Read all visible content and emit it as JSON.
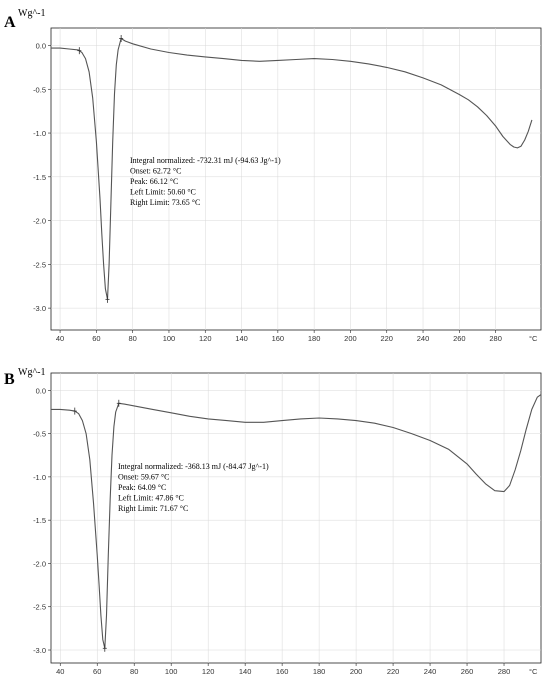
{
  "chart_data": [
    {
      "type": "line",
      "panel_label": "A",
      "ylabel": "Wg^-1",
      "xlabel": "°C",
      "xlim": [
        35,
        305
      ],
      "ylim": [
        -3.25,
        0.2
      ],
      "x_ticks": [
        40,
        60,
        80,
        100,
        120,
        140,
        160,
        180,
        200,
        220,
        240,
        260,
        280
      ],
      "y_ticks": [
        0.0,
        -0.5,
        -1.0,
        -1.5,
        -2.0,
        -2.5,
        -3.0
      ],
      "x_tick_labels": [
        "40",
        "60",
        "80",
        "100",
        "120",
        "140",
        "160",
        "180",
        "200",
        "220",
        "240",
        "260",
        "280"
      ],
      "y_tick_labels": [
        "0.0",
        "-0.5",
        "-1.0",
        "-1.5",
        "-2.0",
        "-2.5",
        "-3.0"
      ],
      "series": [
        {
          "x": [
            35,
            40,
            45,
            50,
            52,
            54,
            56,
            58,
            60,
            62,
            63,
            64,
            65,
            66.12,
            67,
            68,
            69,
            70,
            71,
            72,
            73.65,
            76,
            80,
            90,
            100,
            110,
            120,
            130,
            140,
            150,
            160,
            170,
            180,
            190,
            200,
            210,
            220,
            230,
            240,
            250,
            260,
            265,
            270,
            275,
            280,
            284,
            288,
            290,
            292,
            294,
            296,
            298,
            300
          ],
          "y": [
            -0.03,
            -0.03,
            -0.04,
            -0.05,
            -0.08,
            -0.15,
            -0.3,
            -0.6,
            -1.1,
            -1.75,
            -2.15,
            -2.5,
            -2.78,
            -2.9,
            -2.5,
            -1.8,
            -1.1,
            -0.55,
            -0.22,
            -0.05,
            0.08,
            0.05,
            0.02,
            -0.04,
            -0.08,
            -0.11,
            -0.13,
            -0.15,
            -0.17,
            -0.18,
            -0.17,
            -0.16,
            -0.15,
            -0.16,
            -0.18,
            -0.21,
            -0.25,
            -0.3,
            -0.37,
            -0.45,
            -0.56,
            -0.62,
            -0.7,
            -0.8,
            -0.92,
            -1.04,
            -1.13,
            -1.16,
            -1.17,
            -1.15,
            -1.08,
            -0.98,
            -0.85
          ]
        }
      ],
      "markers_x": [
        50.6,
        66.12,
        73.65
      ],
      "annotation": [
        "Integral normalized: -732.31 mJ (-94.63 Jg^-1)",
        "Onset: 62.72 °C",
        "Peak: 66.12 °C",
        "Left Limit: 50.60 °C",
        "Right Limit: 73.65 °C"
      ]
    },
    {
      "type": "line",
      "panel_label": "B",
      "ylabel": "Wg^-1",
      "xlabel": "°C",
      "xlim": [
        35,
        300
      ],
      "ylim": [
        -3.15,
        0.2
      ],
      "x_ticks": [
        40,
        60,
        80,
        100,
        120,
        140,
        160,
        180,
        200,
        220,
        240,
        260,
        280
      ],
      "y_ticks": [
        0.0,
        -0.5,
        -1.0,
        -1.5,
        -2.0,
        -2.5,
        -3.0
      ],
      "x_tick_labels": [
        "40",
        "60",
        "80",
        "100",
        "120",
        "140",
        "160",
        "180",
        "200",
        "220",
        "240",
        "260",
        "280"
      ],
      "y_tick_labels": [
        "0.0",
        "-0.5",
        "-1.0",
        "-1.5",
        "-2.0",
        "-2.5",
        "-3.0"
      ],
      "series": [
        {
          "x": [
            35,
            40,
            45,
            47.86,
            50,
            52,
            54,
            56,
            58,
            60,
            61,
            62,
            63,
            64.09,
            65,
            66,
            67,
            68,
            69,
            70,
            71.67,
            75,
            80,
            90,
            100,
            110,
            120,
            130,
            140,
            150,
            160,
            170,
            180,
            190,
            200,
            210,
            220,
            230,
            240,
            250,
            260,
            265,
            270,
            275,
            280,
            283,
            286,
            289,
            292,
            295,
            298,
            300
          ],
          "y": [
            -0.22,
            -0.22,
            -0.23,
            -0.24,
            -0.27,
            -0.35,
            -0.5,
            -0.8,
            -1.3,
            -1.9,
            -2.25,
            -2.6,
            -2.88,
            -2.98,
            -2.6,
            -1.9,
            -1.25,
            -0.75,
            -0.42,
            -0.25,
            -0.15,
            -0.16,
            -0.18,
            -0.22,
            -0.26,
            -0.3,
            -0.33,
            -0.35,
            -0.37,
            -0.37,
            -0.35,
            -0.33,
            -0.32,
            -0.33,
            -0.35,
            -0.38,
            -0.43,
            -0.5,
            -0.58,
            -0.68,
            -0.85,
            -0.97,
            -1.08,
            -1.16,
            -1.17,
            -1.1,
            -0.92,
            -0.7,
            -0.45,
            -0.22,
            -0.08,
            -0.05
          ]
        }
      ],
      "markers_x": [
        47.86,
        64.09,
        71.67
      ],
      "annotation": [
        "Integral normalized: -368.13 mJ (-84.47 Jg^-1)",
        "Onset: 59.67 °C",
        "Peak: 64.09 °C",
        "Left Limit: 47.86 °C",
        "Right Limit: 71.67 °C"
      ]
    }
  ]
}
